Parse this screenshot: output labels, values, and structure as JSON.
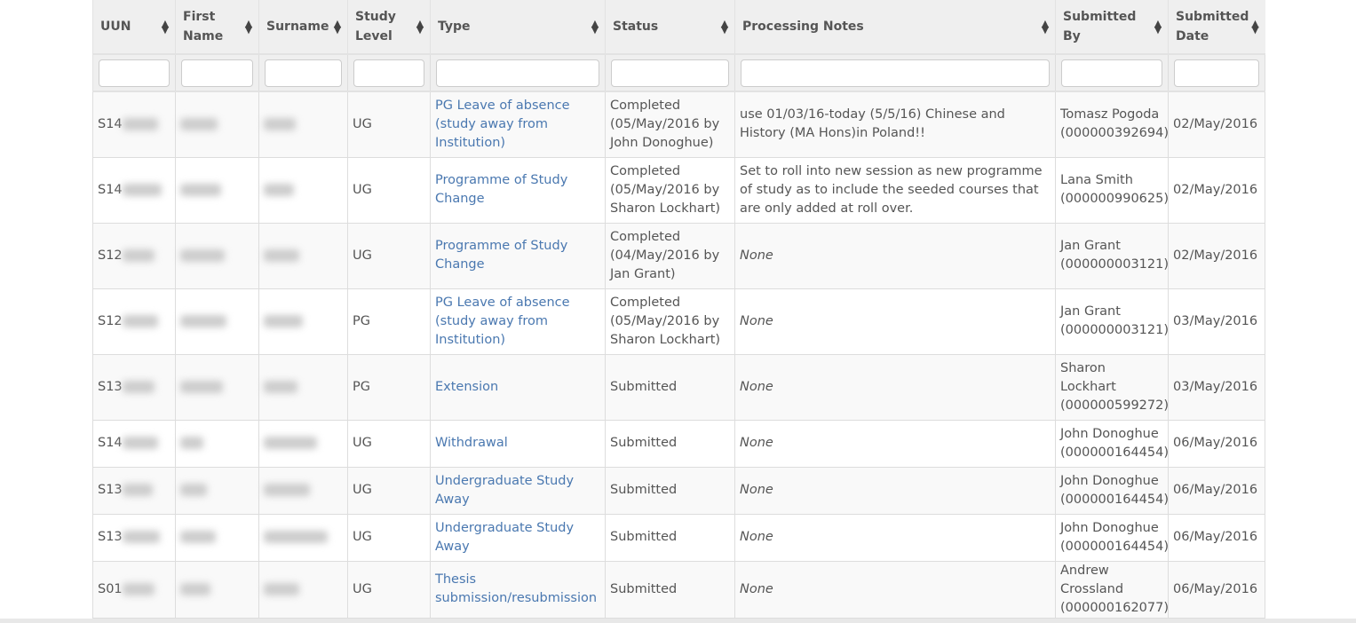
{
  "table": {
    "headers": [
      "UUN",
      "First Name",
      "Surname",
      "Study Level",
      "Type",
      "Status",
      "Processing Notes",
      "Submitted By",
      "Submitted Date"
    ],
    "rows": [
      {
        "uun": "S14",
        "level": "UG",
        "type": "PG Leave of absence (study away from Institution)",
        "status": "Completed (05/May/2016 by John Donoghue)",
        "notes": "use 01/03/16-today (5/5/16) Chinese and History (MA Hons)in Poland!!",
        "notes_none": false,
        "by": "Tomasz Pogoda (000000392694)",
        "date": "02/May/2016"
      },
      {
        "uun": "S14",
        "level": "UG",
        "type": "Programme of Study Change",
        "status": "Completed (05/May/2016 by Sharon Lockhart)",
        "notes": "Set to roll into new session as new programme of study as to include the seeded courses that are only added at roll over.",
        "notes_none": false,
        "by": "Lana Smith (000000990625)",
        "date": "02/May/2016"
      },
      {
        "uun": "S12",
        "level": "UG",
        "type": "Programme of Study Change",
        "status": "Completed (04/May/2016 by Jan Grant)",
        "notes": "None",
        "notes_none": true,
        "by": "Jan Grant (000000003121)",
        "date": "02/May/2016"
      },
      {
        "uun": "S12",
        "level": "PG",
        "type": "PG Leave of absence (study away from Institution)",
        "status": "Completed (05/May/2016 by Sharon Lockhart)",
        "notes": "None",
        "notes_none": true,
        "by": "Jan Grant (000000003121)",
        "date": "03/May/2016"
      },
      {
        "uun": "S13",
        "level": "PG",
        "type": "Extension",
        "status": "Submitted",
        "notes": "None",
        "notes_none": true,
        "by": "Sharon Lockhart (000000599272)",
        "date": "03/May/2016"
      },
      {
        "uun": "S14",
        "level": "UG",
        "type": "Withdrawal",
        "status": "Submitted",
        "notes": "None",
        "notes_none": true,
        "by": "John Donoghue (000000164454)",
        "date": "06/May/2016"
      },
      {
        "uun": "S13",
        "level": "UG",
        "type": "Undergraduate Study Away",
        "status": "Submitted",
        "notes": "None",
        "notes_none": true,
        "by": "John Donoghue (000000164454)",
        "date": "06/May/2016"
      },
      {
        "uun": "S13",
        "level": "UG",
        "type": "Undergraduate Study Away",
        "status": "Submitted",
        "notes": "None",
        "notes_none": true,
        "by": "John Donoghue (000000164454)",
        "date": "06/May/2016"
      },
      {
        "uun": "S01",
        "level": "UG",
        "type": "Thesis submission/resubmission",
        "status": "Submitted",
        "notes": "None",
        "notes_none": true,
        "by": "Andrew Crossland (000000162077)",
        "date": "06/May/2016"
      }
    ]
  },
  "colors": {
    "link": "#4a78b0",
    "header_bg": "#efefef",
    "stripe": "#f9f9f9"
  }
}
